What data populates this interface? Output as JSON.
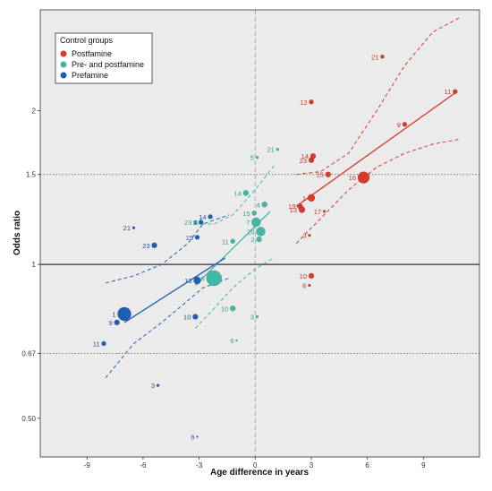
{
  "chart_data": {
    "type": "scatter",
    "xlabel": "Age difference in years",
    "ylabel": "Odds ratio",
    "xlim": [
      -11.5,
      12.0
    ],
    "ylim": [
      0.42,
      3.15
    ],
    "y_scale": "log",
    "x_ticks": [
      -9,
      -6,
      -3,
      0,
      3,
      6,
      9
    ],
    "x_tick_labels": [
      "-9",
      "-6",
      "-3",
      "0",
      "3",
      "6",
      "9"
    ],
    "y_ticks": [
      0.5,
      0.67,
      1,
      1.5,
      2
    ],
    "y_tick_labels": [
      "0.50",
      "0.67",
      "1",
      "1.5",
      "2"
    ],
    "reference_lines": {
      "h_solid": 1,
      "h_dotted": [
        1.5,
        0.67
      ],
      "v_dashed": 0
    },
    "legend": {
      "title": "Control groups",
      "position": "top-left"
    },
    "series": [
      {
        "name": "Postfamine",
        "color": "#d93a2b",
        "label_color": "#c0392b",
        "fit": {
          "x": [
            2.2,
            10.8
          ],
          "y": [
            1.3,
            2.18
          ]
        },
        "ci_upper": {
          "x": [
            2.2,
            3.5,
            5,
            6.5,
            8,
            9.5,
            11
          ],
          "y": [
            1.5,
            1.52,
            1.65,
            2.0,
            2.45,
            2.85,
            3.05
          ]
        },
        "ci_lower": {
          "x": [
            2.2,
            3.5,
            5,
            6.5,
            8,
            9.5,
            11
          ],
          "y": [
            1.1,
            1.23,
            1.4,
            1.55,
            1.65,
            1.72,
            1.76
          ]
        },
        "points": [
          {
            "label": "21",
            "x": 6.8,
            "y": 2.55,
            "r": 2
          },
          {
            "label": "11",
            "x": 10.7,
            "y": 2.18,
            "r": 2.5
          },
          {
            "label": "12",
            "x": 3.0,
            "y": 2.08,
            "r": 2.5
          },
          {
            "label": "9",
            "x": 8.0,
            "y": 1.88,
            "r": 2.5
          },
          {
            "label": "14",
            "x": 3.1,
            "y": 1.63,
            "r": 3
          },
          {
            "label": "23",
            "x": 3.0,
            "y": 1.6,
            "r": 3
          },
          {
            "label": "15",
            "x": 3.9,
            "y": 1.5,
            "r": 3
          },
          {
            "label": "16",
            "x": 5.8,
            "y": 1.48,
            "r": 6.5
          },
          {
            "label": "1",
            "x": 3.0,
            "y": 1.35,
            "r": 4
          },
          {
            "label": "19",
            "x": 2.4,
            "y": 1.3,
            "r": 3
          },
          {
            "label": "13",
            "x": 2.5,
            "y": 1.28,
            "r": 3.5
          },
          {
            "label": "17",
            "x": 3.7,
            "y": 1.27,
            "r": 1.5
          },
          {
            "label": "3",
            "x": 2.9,
            "y": 1.14,
            "r": 1.5
          },
          {
            "label": "10",
            "x": 3.0,
            "y": 0.95,
            "r": 3
          },
          {
            "label": "6",
            "x": 2.9,
            "y": 0.91,
            "r": 1.5
          }
        ]
      },
      {
        "name": "Pre- and postfamine",
        "color": "#3fb8a6",
        "label_color": "#2e9e8e",
        "fit": {
          "x": [
            -3.2,
            0.8
          ],
          "y": [
            0.91,
            1.27
          ]
        },
        "ci_upper": {
          "x": [
            -3.2,
            -2.2,
            -1.2,
            0,
            1.0
          ],
          "y": [
            1.2,
            1.2,
            1.25,
            1.4,
            1.56
          ]
        },
        "ci_lower": {
          "x": [
            -3.2,
            -2.2,
            -1.2,
            0,
            1.0
          ],
          "y": [
            0.75,
            0.82,
            0.9,
            0.98,
            1.03
          ]
        },
        "points": [
          {
            "label": "21",
            "x": 1.2,
            "y": 1.68,
            "r": 1.5
          },
          {
            "label": "5",
            "x": 0.1,
            "y": 1.62,
            "r": 1.5
          },
          {
            "label": "14",
            "x": -0.5,
            "y": 1.38,
            "r": 3
          },
          {
            "label": "4",
            "x": 0.5,
            "y": 1.31,
            "r": 3
          },
          {
            "label": "15",
            "x": -0.05,
            "y": 1.26,
            "r": 2.5
          },
          {
            "label": "7",
            "x": 0.05,
            "y": 1.21,
            "r": 5
          },
          {
            "label": "23",
            "x": -3.2,
            "y": 1.21,
            "r": 2
          },
          {
            "label": "20",
            "x": 0.3,
            "y": 1.16,
            "r": 5
          },
          {
            "label": "2",
            "x": 0.2,
            "y": 1.12,
            "r": 3
          },
          {
            "label": "11",
            "x": -1.2,
            "y": 1.11,
            "r": 2.5
          },
          {
            "label": "16",
            "x": -2.2,
            "y": 0.94,
            "r": 8.5
          },
          {
            "label": "10",
            "x": -1.2,
            "y": 0.82,
            "r": 3
          },
          {
            "label": "3",
            "x": 0.1,
            "y": 0.79,
            "r": 1.5
          },
          {
            "label": "6",
            "x": -1.0,
            "y": 0.71,
            "r": 1
          }
        ]
      },
      {
        "name": "Prefamine",
        "color": "#1f5fb4",
        "label_color": "#1a56a8",
        "fit": {
          "x": [
            -7.0,
            -1.6
          ],
          "y": [
            0.77,
            1.03
          ]
        },
        "ci_upper": {
          "x": [
            -8.0,
            -6.5,
            -5,
            -3.6,
            -2.8,
            -1.4
          ],
          "y": [
            0.92,
            0.95,
            1.0,
            1.1,
            1.2,
            1.25
          ]
        },
        "ci_lower": {
          "x": [
            -8.0,
            -6.5,
            -5,
            -3.6,
            -2.8,
            -1.4
          ],
          "y": [
            0.6,
            0.7,
            0.77,
            0.85,
            0.9,
            0.94
          ]
        },
        "points": [
          {
            "label": "14",
            "x": -2.4,
            "y": 1.24,
            "r": 2.5
          },
          {
            "label": "2",
            "x": -2.9,
            "y": 1.21,
            "r": 2.5
          },
          {
            "label": "21",
            "x": -6.5,
            "y": 1.18,
            "r": 1.5
          },
          {
            "label": "15",
            "x": -3.1,
            "y": 1.13,
            "r": 2.5
          },
          {
            "label": "23",
            "x": -5.4,
            "y": 1.09,
            "r": 3
          },
          {
            "label": "13",
            "x": -3.1,
            "y": 0.93,
            "r": 4
          },
          {
            "label": "10",
            "x": -3.2,
            "y": 0.79,
            "r": 3
          },
          {
            "label": "1",
            "x": -7.0,
            "y": 0.8,
            "r": 7.5
          },
          {
            "label": "9",
            "x": -7.4,
            "y": 0.77,
            "r": 3
          },
          {
            "label": "11",
            "x": -8.1,
            "y": 0.7,
            "r": 2.5
          },
          {
            "label": "3",
            "x": -5.2,
            "y": 0.58,
            "r": 1.5
          },
          {
            "label": "6",
            "x": -3.1,
            "y": 0.46,
            "r": 1
          }
        ]
      }
    ]
  }
}
